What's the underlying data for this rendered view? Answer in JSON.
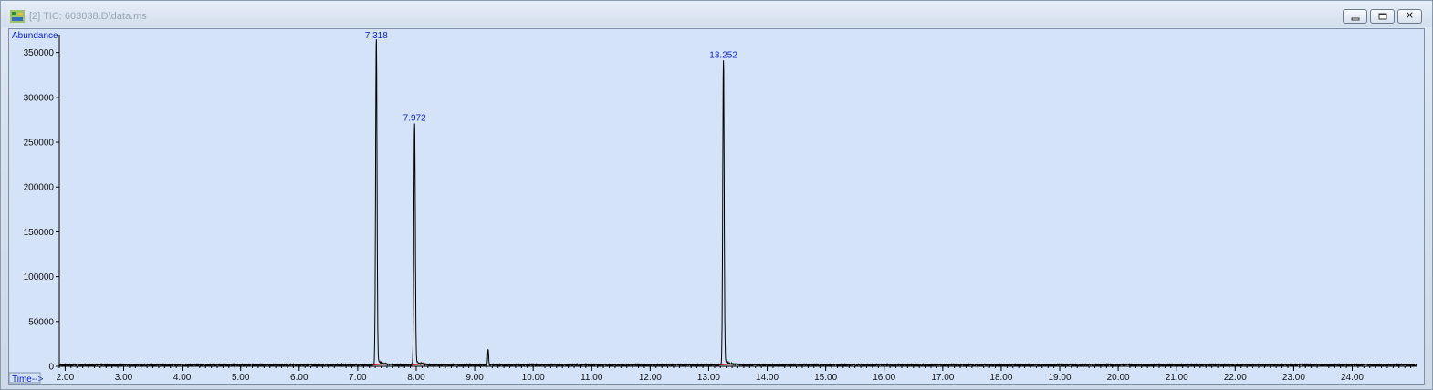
{
  "window": {
    "title": "[2] TIC: 603038.D\\data.ms",
    "icon": "chemstation-app-icon",
    "buttons": [
      "minimize",
      "restore",
      "close"
    ],
    "panel_bg": "#d5e3f9"
  },
  "chart_data": {
    "type": "line",
    "ylabel": "Abundance",
    "xlabel": "Time-->",
    "xlim": [
      1.9,
      25.1
    ],
    "ylim": [
      0,
      370000
    ],
    "y_ticks": [
      0,
      50000,
      100000,
      150000,
      200000,
      250000,
      300000,
      350000
    ],
    "y_tick_labels": [
      "0",
      "50000",
      "100000",
      "150000",
      "200000",
      "250000",
      "300000",
      "350000"
    ],
    "x_ticks": [
      2.0,
      3.0,
      4.0,
      5.0,
      6.0,
      7.0,
      8.0,
      9.0,
      10.0,
      11.0,
      12.0,
      13.0,
      14.0,
      15.0,
      16.0,
      17.0,
      18.0,
      19.0,
      20.0,
      21.0,
      22.0,
      23.0,
      24.0
    ],
    "x_tick_labels": [
      "2.00",
      "3.00",
      "4.00",
      "5.00",
      "6.00",
      "7.00",
      "8.00",
      "9.00",
      "10.00",
      "11.00",
      "12.00",
      "13.00",
      "14.00",
      "15.00",
      "16.00",
      "17.00",
      "18.00",
      "19.00",
      "20.00",
      "21.00",
      "22.00",
      "23.00",
      "24.00"
    ],
    "line_color": "#000000",
    "baseline_marker_color": "#cc0000",
    "peaks": [
      {
        "rt": 7.318,
        "label": "7.318",
        "height": 362000
      },
      {
        "rt": 7.972,
        "label": "7.972",
        "height": 270000
      },
      {
        "rt": 9.23,
        "label": "",
        "height": 18000
      },
      {
        "rt": 13.252,
        "label": "13.252",
        "height": 340000
      }
    ],
    "baseline_level": 1500,
    "grid": false,
    "legend": "none"
  }
}
